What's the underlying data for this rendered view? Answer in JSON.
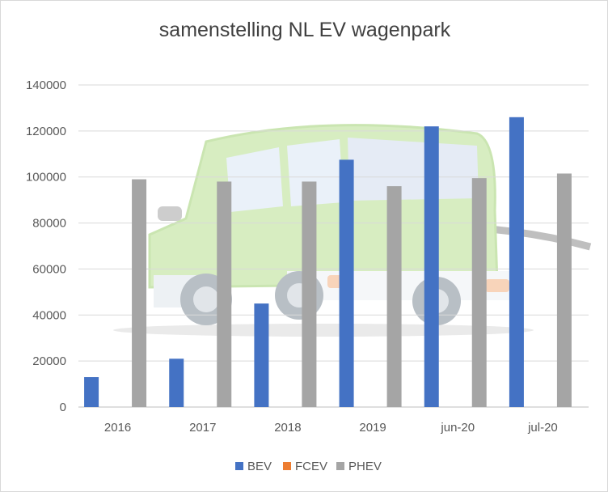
{
  "chart_data": {
    "type": "bar",
    "title": "samenstelling NL EV wagenpark",
    "categories": [
      "2016",
      "2017",
      "2018",
      "2019",
      "jun-20",
      "jul-20"
    ],
    "series": [
      {
        "name": "BEV",
        "color": "#4472C4",
        "values": [
          13000,
          21000,
          45000,
          107500,
          122000,
          126000
        ]
      },
      {
        "name": "FCEV",
        "color": "#ED7D31",
        "values": [
          0,
          0,
          0,
          0,
          0,
          0
        ]
      },
      {
        "name": "PHEV",
        "color": "#A5A5A5",
        "values": [
          99000,
          98000,
          98000,
          96000,
          99500,
          101500
        ]
      }
    ],
    "y_ticks": [
      "0",
      "20000",
      "40000",
      "60000",
      "80000",
      "100000",
      "120000",
      "140000"
    ],
    "ylim": [
      0,
      140000
    ],
    "grid": true,
    "legend_position": "bottom",
    "background_image": "green-van-illustration"
  }
}
